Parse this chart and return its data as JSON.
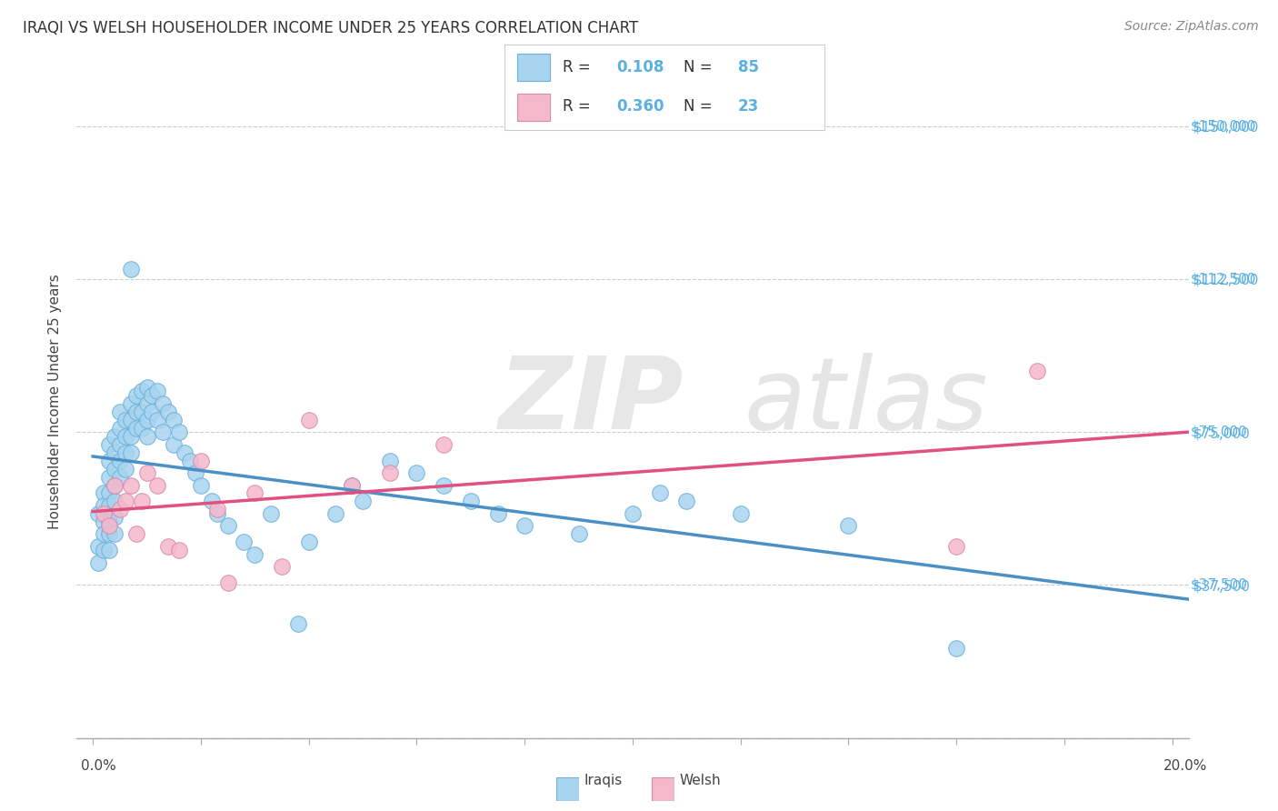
{
  "title": "IRAQI VS WELSH HOUSEHOLDER INCOME UNDER 25 YEARS CORRELATION CHART",
  "source": "Source: ZipAtlas.com",
  "ylabel": "Householder Income Under 25 years",
  "ytick_values": [
    0,
    37500,
    75000,
    112500,
    150000
  ],
  "ytick_labels": [
    "",
    "$37,500",
    "$75,000",
    "$112,500",
    "$150,000"
  ],
  "iraqis_color": "#a8d4f0",
  "welsh_color": "#f5b8cb",
  "line_iraqis_color": "#4a90c4",
  "line_welsh_color": "#e05080",
  "iraqis_x": [
    0.001,
    0.001,
    0.001,
    0.002,
    0.002,
    0.002,
    0.002,
    0.002,
    0.003,
    0.003,
    0.003,
    0.003,
    0.003,
    0.003,
    0.003,
    0.003,
    0.004,
    0.004,
    0.004,
    0.004,
    0.004,
    0.004,
    0.004,
    0.005,
    0.005,
    0.005,
    0.005,
    0.005,
    0.006,
    0.006,
    0.006,
    0.006,
    0.007,
    0.007,
    0.007,
    0.007,
    0.007,
    0.008,
    0.008,
    0.008,
    0.009,
    0.009,
    0.009,
    0.01,
    0.01,
    0.01,
    0.01,
    0.011,
    0.011,
    0.012,
    0.012,
    0.013,
    0.013,
    0.014,
    0.015,
    0.015,
    0.016,
    0.017,
    0.018,
    0.019,
    0.02,
    0.022,
    0.023,
    0.025,
    0.028,
    0.03,
    0.033,
    0.038,
    0.04,
    0.045,
    0.048,
    0.05,
    0.055,
    0.06,
    0.065,
    0.07,
    0.075,
    0.08,
    0.09,
    0.1,
    0.105,
    0.11,
    0.12,
    0.14,
    0.16
  ],
  "iraqis_y": [
    55000,
    47000,
    43000,
    60000,
    57000,
    53000,
    50000,
    46000,
    72000,
    68000,
    64000,
    60000,
    57000,
    53000,
    50000,
    46000,
    74000,
    70000,
    66000,
    62000,
    58000,
    54000,
    50000,
    80000,
    76000,
    72000,
    68000,
    64000,
    78000,
    74000,
    70000,
    66000,
    82000,
    78000,
    74000,
    70000,
    115000,
    84000,
    80000,
    76000,
    85000,
    80000,
    76000,
    86000,
    82000,
    78000,
    74000,
    84000,
    80000,
    85000,
    78000,
    82000,
    75000,
    80000,
    78000,
    72000,
    75000,
    70000,
    68000,
    65000,
    62000,
    58000,
    55000,
    52000,
    48000,
    45000,
    55000,
    28000,
    48000,
    55000,
    62000,
    58000,
    68000,
    65000,
    62000,
    58000,
    55000,
    52000,
    50000,
    55000,
    60000,
    58000,
    55000,
    52000,
    22000
  ],
  "welsh_x": [
    0.002,
    0.003,
    0.004,
    0.005,
    0.006,
    0.007,
    0.008,
    0.009,
    0.01,
    0.012,
    0.014,
    0.016,
    0.02,
    0.023,
    0.025,
    0.03,
    0.035,
    0.04,
    0.048,
    0.055,
    0.065,
    0.16,
    0.175
  ],
  "welsh_y": [
    55000,
    52000,
    62000,
    56000,
    58000,
    62000,
    50000,
    58000,
    65000,
    62000,
    47000,
    46000,
    68000,
    56000,
    38000,
    60000,
    42000,
    78000,
    62000,
    65000,
    72000,
    47000,
    90000
  ]
}
